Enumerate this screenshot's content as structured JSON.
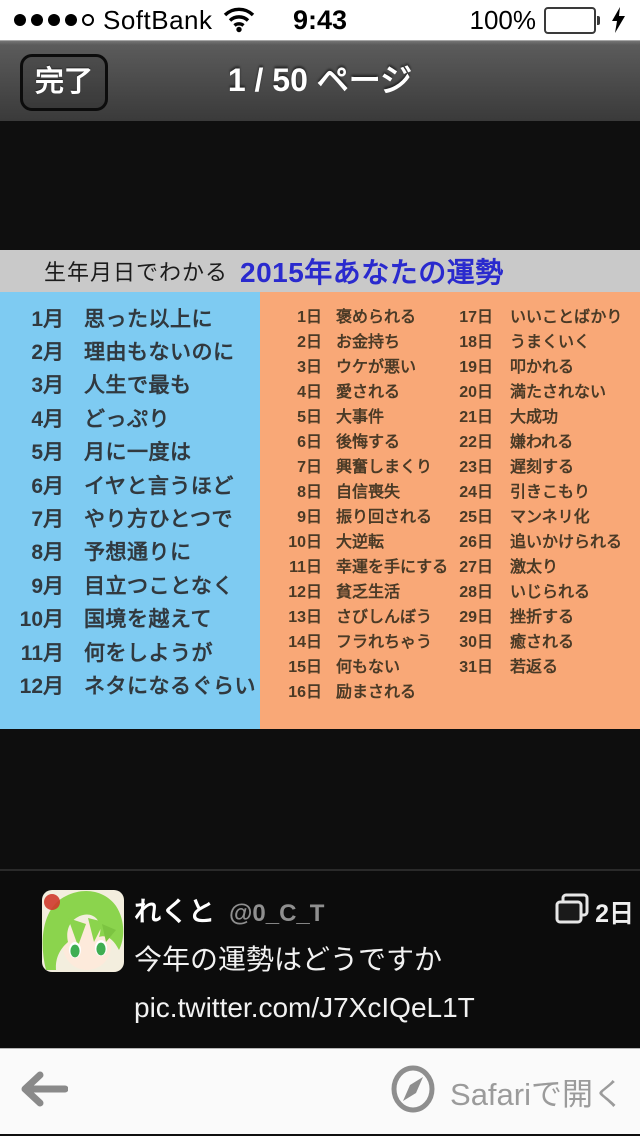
{
  "status_bar": {
    "carrier": "SoftBank",
    "time": "9:43",
    "battery_percent": "100%",
    "signal": "4-of-5-dots",
    "battery_color": "#5cd660",
    "charging": true
  },
  "nav_bar": {
    "done_label": "完了",
    "title": "1 / 50 ページ"
  },
  "fortune_image": {
    "header": {
      "prefix": "生年月日でわかる",
      "highlight": "2015年あなたの運勢",
      "highlight_color": "#2a2ace",
      "bar_color": "#c9c9c9"
    },
    "months_panel_color": "#7ecbf2",
    "days_panel_color": "#f9a877",
    "months": [
      {
        "label": "1月",
        "text": "思った以上に"
      },
      {
        "label": "2月",
        "text": "理由もないのに"
      },
      {
        "label": "3月",
        "text": "人生で最も"
      },
      {
        "label": "4月",
        "text": "どっぷり"
      },
      {
        "label": "5月",
        "text": "月に一度は"
      },
      {
        "label": "6月",
        "text": "イヤと言うほど"
      },
      {
        "label": "7月",
        "text": "やり方ひとつで"
      },
      {
        "label": "8月",
        "text": "予想通りに"
      },
      {
        "label": "9月",
        "text": "目立つことなく"
      },
      {
        "label": "10月",
        "text": "国境を越えて"
      },
      {
        "label": "11月",
        "text": "何をしようが"
      },
      {
        "label": "12月",
        "text": "ネタになるぐらい"
      }
    ],
    "days_col1": [
      {
        "label": "1日",
        "text": "褒められる"
      },
      {
        "label": "2日",
        "text": "お金持ち"
      },
      {
        "label": "3日",
        "text": "ウケが悪い"
      },
      {
        "label": "4日",
        "text": "愛される"
      },
      {
        "label": "5日",
        "text": "大事件"
      },
      {
        "label": "6日",
        "text": "後悔する"
      },
      {
        "label": "7日",
        "text": "興奮しまくり"
      },
      {
        "label": "8日",
        "text": "自信喪失"
      },
      {
        "label": "9日",
        "text": "振り回される"
      },
      {
        "label": "10日",
        "text": "大逆転"
      },
      {
        "label": "11日",
        "text": "幸運を手にする"
      },
      {
        "label": "12日",
        "text": "貧乏生活"
      },
      {
        "label": "13日",
        "text": "さびしんぼう"
      },
      {
        "label": "14日",
        "text": "フラれちゃう"
      },
      {
        "label": "15日",
        "text": "何もない"
      },
      {
        "label": "16日",
        "text": "励まされる"
      }
    ],
    "days_col2": [
      {
        "label": "17日",
        "text": "いいことばかり"
      },
      {
        "label": "18日",
        "text": "うまくいく"
      },
      {
        "label": "19日",
        "text": "叩かれる"
      },
      {
        "label": "20日",
        "text": "満たされない"
      },
      {
        "label": "21日",
        "text": "大成功"
      },
      {
        "label": "22日",
        "text": "嫌われる"
      },
      {
        "label": "23日",
        "text": "遅刻する"
      },
      {
        "label": "24日",
        "text": "引きこもり"
      },
      {
        "label": "25日",
        "text": "マンネリ化"
      },
      {
        "label": "26日",
        "text": "追いかけられる"
      },
      {
        "label": "27日",
        "text": "激太り"
      },
      {
        "label": "28日",
        "text": "いじられる"
      },
      {
        "label": "29日",
        "text": "挫折する"
      },
      {
        "label": "30日",
        "text": "癒される"
      },
      {
        "label": "31日",
        "text": "若返る"
      }
    ]
  },
  "tweet": {
    "name": "れくと",
    "handle": "@0_C_T",
    "body": "今年の運勢はどうですか",
    "link": "pic.twitter.com/J7XcIQeL1T",
    "timestamp": "2日",
    "media_icon": "stacked-photos"
  },
  "toolbar": {
    "back_icon": "back-arrow",
    "safari_icon": "safari-compass",
    "open_label": "Safariで開く"
  }
}
